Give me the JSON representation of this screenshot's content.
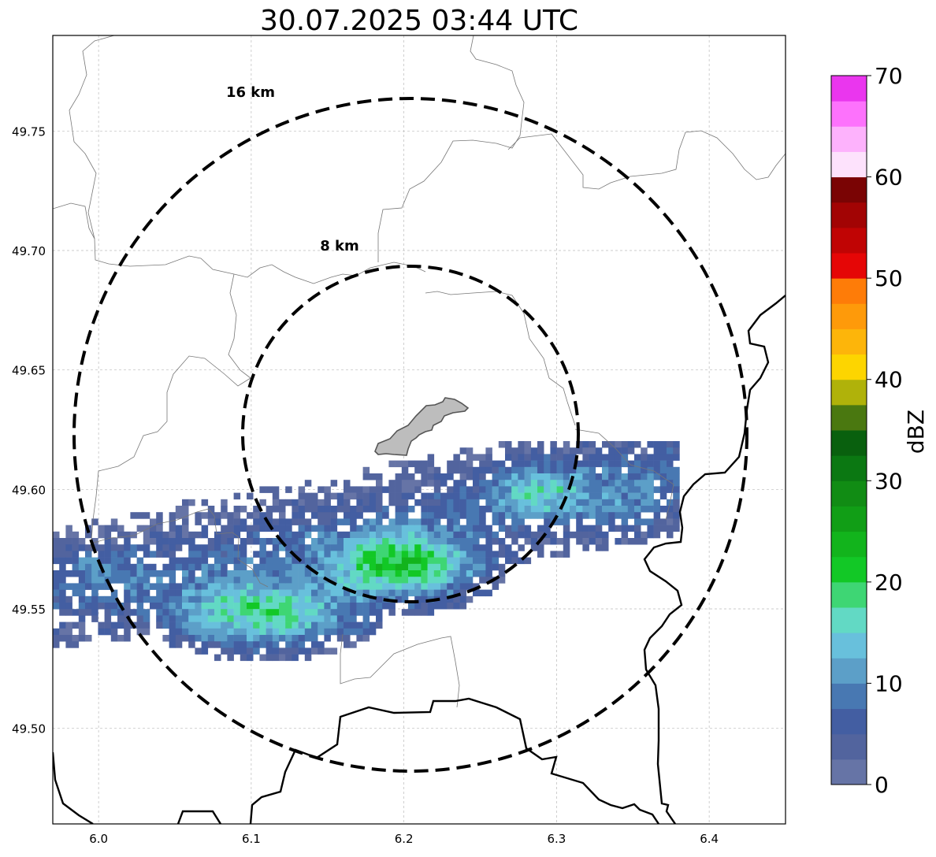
{
  "map": {
    "title": "30.07.2025 03:44 UTC",
    "longitude_ticks": [
      "6.0",
      "6.1",
      "6.2",
      "6.3",
      "6.4"
    ],
    "latitude_ticks": [
      "49.75",
      "49.70",
      "49.65",
      "49.60",
      "49.55",
      "49.50"
    ],
    "longitude_tick_values": [
      6.0,
      6.1,
      6.2,
      6.3,
      6.4
    ],
    "latitude_tick_values": [
      49.75,
      49.7,
      49.65,
      49.6,
      49.55,
      49.5
    ],
    "lon_range": [
      5.97,
      6.45
    ],
    "lat_range": [
      49.46,
      49.79
    ],
    "gridlines": true,
    "range_rings": [
      {
        "label": "16 km",
        "radius_km": 16
      },
      {
        "label": "8 km",
        "radius_km": 8
      }
    ],
    "ring_style": "dashed",
    "municipal_boundary_color": "#777777",
    "national_border_color": "#000000",
    "highlighted_area_color": "#bdbdbd"
  },
  "colorbar": {
    "label": "dBZ",
    "tick_labels": [
      "0",
      "10",
      "20",
      "30",
      "40",
      "50",
      "60",
      "70"
    ],
    "tick_values": [
      0,
      10,
      20,
      30,
      40,
      50,
      60,
      70
    ],
    "range": [
      0,
      70
    ],
    "step": 2.5,
    "colors": [
      "#6674a6",
      "#52649e",
      "#435ea2",
      "#4878b2",
      "#5c9fc8",
      "#68c0dc",
      "#62d9c4",
      "#3ed674",
      "#12c826",
      "#12b41c",
      "#119e16",
      "#118c14",
      "#0b7812",
      "#09600e",
      "#4a7810",
      "#b0b20a",
      "#fdd500",
      "#fdb50a",
      "#fe9a0a",
      "#fe7c08",
      "#e50606",
      "#c00404",
      "#a20404",
      "#7a0404",
      "#fde2fc",
      "#fdb2fc",
      "#fd72fc",
      "#ea36ee"
    ]
  },
  "radar_cells": {
    "description_level": "reflectivity",
    "dominant_range_dbz": [
      0,
      30
    ]
  }
}
